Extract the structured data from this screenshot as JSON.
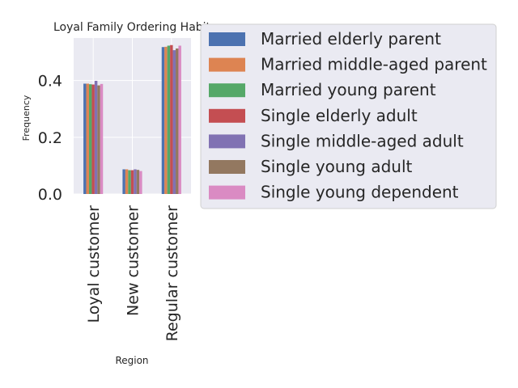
{
  "chart_data": {
    "type": "bar",
    "title": "Loyal Family Ordering Habit",
    "xlabel": "Region",
    "ylabel": "Frequency",
    "categories": [
      "Loyal customer",
      "New customer",
      "Regular customer"
    ],
    "series": [
      {
        "name": "Married elderly parent",
        "color": "#4c72b0",
        "values": [
          0.389,
          0.087,
          0.518
        ]
      },
      {
        "name": "Married middle-aged parent",
        "color": "#dd8452",
        "values": [
          0.389,
          0.087,
          0.519
        ]
      },
      {
        "name": "Married young parent",
        "color": "#55a868",
        "values": [
          0.387,
          0.084,
          0.523
        ]
      },
      {
        "name": "Single elderly adult",
        "color": "#c44e52",
        "values": [
          0.386,
          0.084,
          0.525
        ]
      },
      {
        "name": "Single middle-aged adult",
        "color": "#8172b3",
        "values": [
          0.399,
          0.087,
          0.507
        ]
      },
      {
        "name": "Single young adult",
        "color": "#937860",
        "values": [
          0.383,
          0.085,
          0.513
        ]
      },
      {
        "name": "Single young dependent",
        "color": "#da8bc3",
        "values": [
          0.388,
          0.081,
          0.523
        ]
      }
    ],
    "yticks": [
      "0.0",
      "0.2",
      "0.4"
    ],
    "ylim": [
      0,
      0.55
    ],
    "grid": true,
    "legend_position": "right"
  }
}
